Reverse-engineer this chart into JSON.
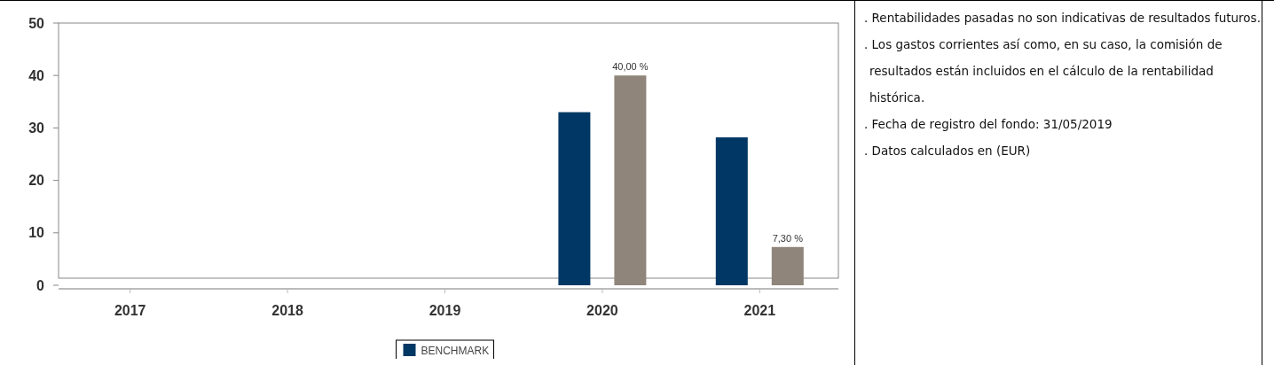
{
  "chart_data": {
    "type": "bar",
    "categories": [
      "2017",
      "2018",
      "2019",
      "2020",
      "2021"
    ],
    "series": [
      {
        "name": "BENCHMARK",
        "color": "#003764",
        "values": [
          null,
          null,
          null,
          33,
          28.2
        ]
      },
      {
        "color": "#8f857a",
        "values": [
          null,
          null,
          null,
          40,
          7.3
        ],
        "value_labels": [
          null,
          null,
          null,
          "40,00 %",
          "7,30 %"
        ]
      }
    ],
    "ylim": [
      0,
      50
    ],
    "yticks": [
      0,
      10,
      20,
      30,
      40,
      50
    ],
    "grid": false,
    "legend": "bottom",
    "annotations": [
      ". Rentabilidades pasadas no son indicativas de resultados futuros.",
      ". Los gastos corrientes así como, en su caso, la comisión de resultados están incluidos en el cálculo de la rentabilidad histórica.",
      ". Fecha de registro del fondo: 31/05/2019",
      ". Datos calculados en (EUR)"
    ]
  }
}
